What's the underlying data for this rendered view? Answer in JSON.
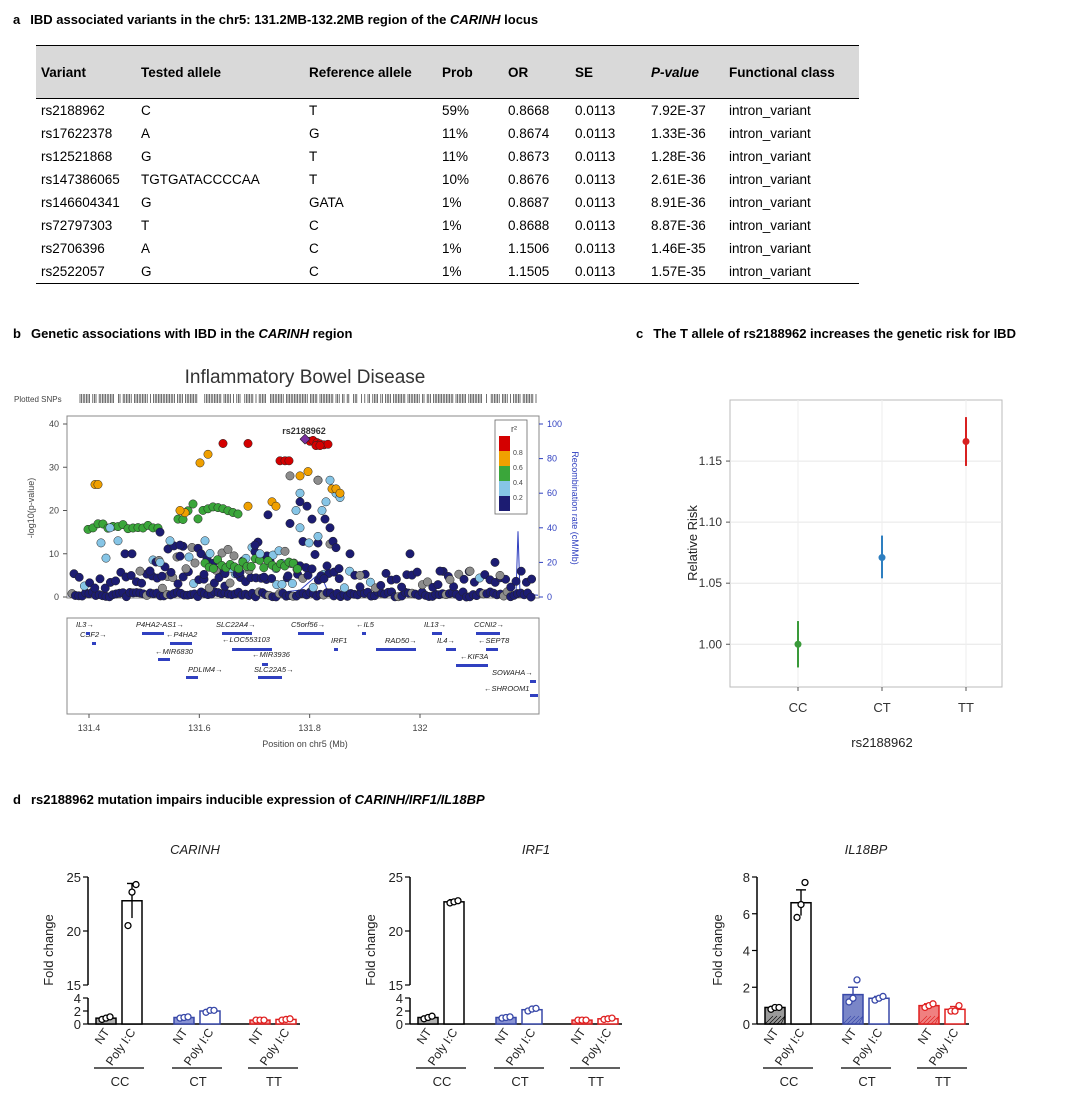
{
  "panel_a": {
    "label": "a",
    "title_pre": "IBD associated variants in the chr5: 131.2MB-132.2MB region of the ",
    "title_gene": "CARINH",
    "title_post": " locus",
    "headers": [
      "Variant",
      "Tested allele",
      "Reference allele",
      "Prob",
      "OR",
      "SE",
      "P-value",
      "Functional class"
    ],
    "rows": [
      [
        "rs2188962",
        "C",
        "T",
        "59%",
        "0.8668",
        "0.0113",
        "7.92E-37",
        "intron_variant"
      ],
      [
        "rs17622378",
        "A",
        "G",
        "11%",
        "0.8674",
        "0.0113",
        "1.33E-36",
        "intron_variant"
      ],
      [
        "rs12521868",
        "G",
        "T",
        "11%",
        "0.8673",
        "0.0113",
        "1.28E-36",
        "intron_variant"
      ],
      [
        "rs147386065",
        "TGTGATACCCCAA",
        "T",
        "10%",
        "0.8676",
        "0.0113",
        "2.61E-36",
        "intron_variant"
      ],
      [
        "rs146604341",
        "G",
        "GATA",
        "1%",
        "0.8687",
        "0.0113",
        "8.91E-36",
        "intron_variant"
      ],
      [
        "rs72797303",
        "T",
        "C",
        "1%",
        "0.8688",
        "0.0113",
        "8.87E-36",
        "intron_variant"
      ],
      [
        "rs2706396",
        "A",
        "C",
        "1%",
        "1.1506",
        "0.0113",
        "1.46E-35",
        "intron_variant"
      ],
      [
        "rs2522057",
        "G",
        "C",
        "1%",
        "1.1505",
        "0.0113",
        "1.57E-35",
        "intron_variant"
      ]
    ]
  },
  "panel_b": {
    "label": "b",
    "title_pre": "Genetic associations with IBD in the ",
    "title_gene": "CARINH",
    "title_post": " region",
    "plot_title": "Inflammatory Bowel Disease",
    "plotted_snps": "Plotted SNPs",
    "lead_snp": "rs2188962",
    "y_label": "-log10(p-value)",
    "y_ticks": [
      "0",
      "10",
      "20",
      "30",
      "40"
    ],
    "y2_label": "Recombination rate (cM/Mb)",
    "y2_ticks": [
      "0",
      "20",
      "40",
      "60",
      "80",
      "100"
    ],
    "x_ticks": [
      "131.4",
      "131.6",
      "131.8",
      "132"
    ],
    "x_label": "Position on chr5 (Mb)",
    "legend_title": "r²",
    "legend_values": [
      "0.8",
      "0.6",
      "0.4",
      "0.2"
    ],
    "genes": [
      "IL3→",
      "CSF2→",
      "P4HA2-AS1→",
      "←P4HA2",
      "←MIR6830",
      "PDLIM4→",
      "SLC22A4→",
      "←LOC553103",
      "←MIR3936",
      "SLC22A5→",
      "C5orf56→",
      "IRF1",
      "←IL5",
      "RAD50→",
      "IL13→",
      "IL4→",
      "CCNI2→",
      "←SEPT8",
      "←KIF3A",
      "SOWAHA→",
      "←SHROOM1"
    ]
  },
  "panel_c": {
    "label": "c",
    "title": "The T allele of rs2188962 increases the genetic risk for IBD",
    "colors": [
      "#3a9a3a",
      "#2e7fc0",
      "#d82020"
    ],
    "chart_data": {
      "type": "scatter",
      "title": "The T allele of rs2188962 increases the genetic risk for IBD",
      "xlabel": "rs2188962",
      "ylabel": "Relative Risk",
      "categories": [
        "CC",
        "CT",
        "TT"
      ],
      "values": [
        1.0,
        1.071,
        1.166
      ],
      "err_low": [
        0.981,
        1.054,
        1.146
      ],
      "err_high": [
        1.019,
        1.089,
        1.186
      ],
      "ylim": [
        0.965,
        1.2
      ],
      "y_ticks": [
        1.0,
        1.05,
        1.1,
        1.15
      ],
      "y_tick_labels": [
        "1.00",
        "1.05",
        "1.10",
        "1.15"
      ]
    }
  },
  "panel_d": {
    "label": "d",
    "title_pre": "rs2188962 mutation impairs inducible expression of ",
    "title_genes": "CARINH/IRF1/IL18BP",
    "ylabel": "Fold change",
    "bar_labels": [
      "NT",
      "Poly I:C"
    ],
    "groups": [
      "CC",
      "CT",
      "TT"
    ],
    "group_colors": [
      "#000000",
      "#3848a8",
      "#e02020"
    ],
    "chart_data": [
      {
        "type": "bar",
        "title": "CARINH",
        "ylabel": "Fold change",
        "groups": [
          "CC",
          "CT",
          "TT"
        ],
        "conditions": [
          "NT",
          "Poly I:C"
        ],
        "values": [
          0.9,
          22.8,
          1.0,
          2.0,
          0.6,
          0.7
        ],
        "sem": [
          0.2,
          1.6,
          0.1,
          0.2,
          0.05,
          0.1
        ],
        "points": [
          [
            0.7,
            0.9,
            1.1
          ],
          [
            20.5,
            23.6,
            24.3
          ],
          [
            0.9,
            1.0,
            1.1
          ],
          [
            1.8,
            2.1,
            2.1
          ],
          [
            0.6,
            0.6,
            0.6
          ],
          [
            0.6,
            0.7,
            0.8
          ]
        ],
        "y_ticks": [
          0,
          2,
          4,
          15,
          20,
          25
        ],
        "y_break": [
          4,
          15
        ]
      },
      {
        "type": "bar",
        "title": "IRF1",
        "ylabel": "Fold change",
        "groups": [
          "CC",
          "CT",
          "TT"
        ],
        "conditions": [
          "NT",
          "Poly I:C"
        ],
        "values": [
          1.0,
          22.7,
          1.0,
          2.2,
          0.6,
          0.8
        ],
        "sem": [
          0.15,
          0.2,
          0.1,
          0.2,
          0.05,
          0.1
        ],
        "points": [
          [
            0.8,
            1.0,
            1.2
          ],
          [
            22.6,
            22.7,
            22.8
          ],
          [
            0.9,
            1.0,
            1.1
          ],
          [
            2.0,
            2.3,
            2.4
          ],
          [
            0.6,
            0.6,
            0.6
          ],
          [
            0.7,
            0.8,
            0.9
          ]
        ],
        "y_ticks": [
          0,
          2,
          4,
          15,
          20,
          25
        ],
        "y_break": [
          4,
          15
        ]
      },
      {
        "type": "bar",
        "title": "IL18BP",
        "ylabel": "Fold change",
        "groups": [
          "CC",
          "CT",
          "TT"
        ],
        "conditions": [
          "NT",
          "Poly I:C"
        ],
        "values": [
          0.9,
          6.6,
          1.6,
          1.4,
          1.0,
          0.8
        ],
        "sem": [
          0.05,
          0.7,
          0.4,
          0.1,
          0.1,
          0.15
        ],
        "points": [
          [
            0.8,
            0.9,
            0.9
          ],
          [
            5.8,
            6.5,
            7.7
          ],
          [
            1.2,
            1.4,
            2.4
          ],
          [
            1.3,
            1.4,
            1.5
          ],
          [
            0.9,
            1.0,
            1.1
          ],
          [
            0.7,
            0.7,
            1.0
          ]
        ],
        "y_ticks": [
          0,
          2,
          4,
          6,
          8
        ],
        "y_break": null
      }
    ]
  }
}
